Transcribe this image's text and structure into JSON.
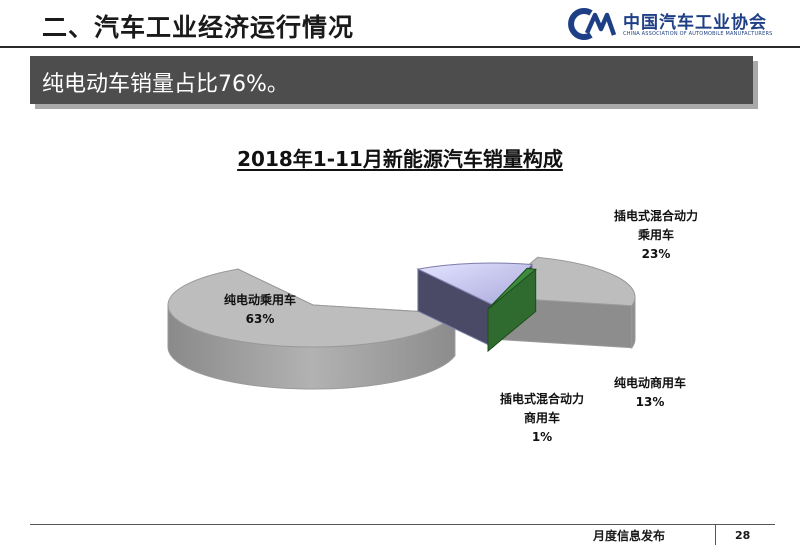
{
  "header": {
    "section_title": "二、汽车工业经济运行情况",
    "logo_text": "中国汽车工业协会",
    "logo_subtext": "CHINA ASSOCIATION OF AUTOMOBILE MANUFACTURERS"
  },
  "banner": {
    "text": "纯电动车销量占比76%。"
  },
  "chart_data": {
    "type": "pie",
    "title": "2018年1-11月新能源汽车销量构成",
    "slices": [
      {
        "name": "纯电动乘用车",
        "value": 63,
        "pct_label": "63%",
        "color": "#bdbdbd"
      },
      {
        "name": "插电式混合动力乘用车",
        "value": 23,
        "pct_label": "23%",
        "color": "#bdbdbd"
      },
      {
        "name": "纯电动商用车",
        "value": 13,
        "pct_label": "13%",
        "color": "#c9c9f2"
      },
      {
        "name": "插电式混合动力商用车",
        "value": 1,
        "pct_label": "1%",
        "color": "#3e8a3e"
      }
    ],
    "labels": {
      "bev_passenger": {
        "line1": "纯电动乘用车",
        "pct": "63%"
      },
      "phev_passenger": {
        "line1": "插电式混合动力",
        "line2": "乘用车",
        "pct": "23%"
      },
      "bev_commercial": {
        "line1": "纯电动商用车",
        "pct": "13%"
      },
      "phev_commercial": {
        "line1": "插电式混合动力",
        "line2": "商用车",
        "pct": "1%"
      }
    }
  },
  "footer": {
    "label": "月度信息发布",
    "page": "28"
  }
}
